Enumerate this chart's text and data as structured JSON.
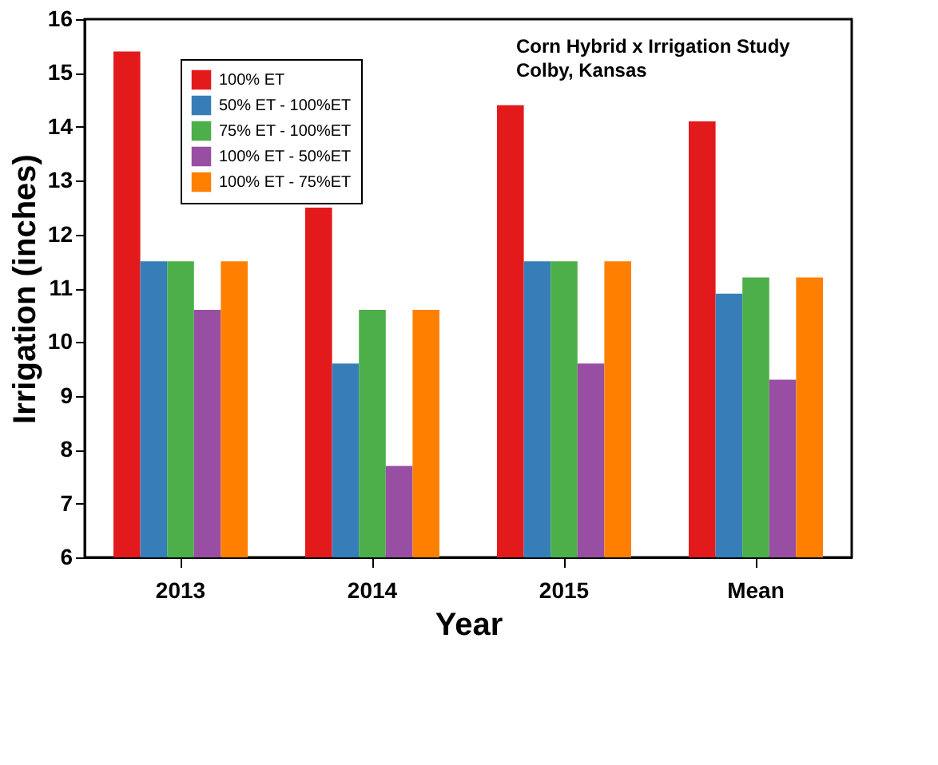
{
  "chart_data": {
    "type": "bar",
    "xlabel": "Year",
    "ylabel": "Irrigation (inches)",
    "categories": [
      "2013",
      "2014",
      "2015",
      "Mean"
    ],
    "series": [
      {
        "name": "100% ET",
        "color": "#e31a1c",
        "values": [
          15.4,
          12.5,
          14.4,
          14.1
        ]
      },
      {
        "name": "50% ET - 100%ET",
        "color": "#377eb8",
        "values": [
          11.5,
          9.6,
          11.5,
          10.9
        ]
      },
      {
        "name": "75% ET - 100%ET",
        "color": "#4daf4a",
        "values": [
          11.5,
          10.6,
          11.5,
          11.2
        ]
      },
      {
        "name": "100% ET - 50%ET",
        "color": "#984ea3",
        "values": [
          10.6,
          7.7,
          9.6,
          9.3
        ]
      },
      {
        "name": "100% ET - 75%ET",
        "color": "#ff7f00",
        "values": [
          11.5,
          10.6,
          11.5,
          11.2
        ]
      }
    ],
    "ylim": [
      6,
      16
    ],
    "yticks": [
      6,
      7,
      8,
      9,
      10,
      11,
      12,
      13,
      14,
      15,
      16
    ],
    "annotations": [
      "Corn Hybrid x Irrigation Study",
      "Colby, Kansas"
    ],
    "legend": "top left",
    "grid": false
  }
}
